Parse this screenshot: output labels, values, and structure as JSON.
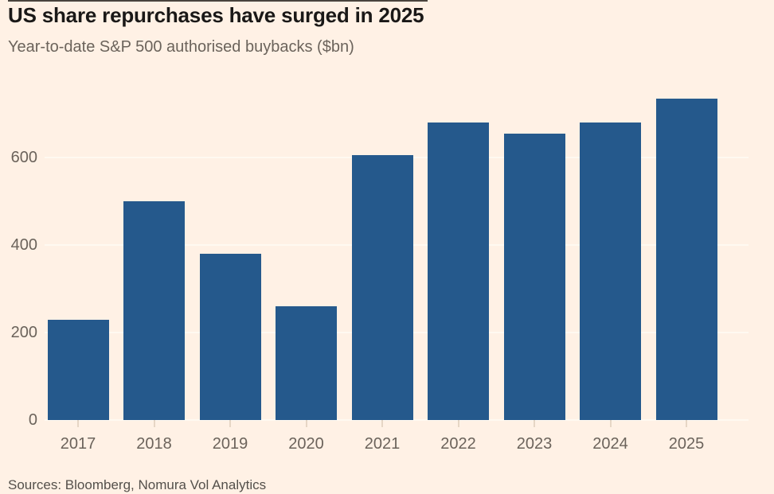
{
  "chart": {
    "title": "US share repurchases have surged in 2025",
    "subtitle": "Year-to-date S&P 500 authorised buybacks ($bn)",
    "source": "Sources: Bloomberg, Nomura Vol Analytics"
  },
  "chart_data": {
    "type": "bar",
    "title": "US share repurchases have surged in 2025",
    "subtitle": "Year-to-date S&P 500 authorised buybacks ($bn)",
    "categories": [
      "2017",
      "2018",
      "2019",
      "2020",
      "2021",
      "2022",
      "2023",
      "2024",
      "2025"
    ],
    "values": [
      230,
      500,
      380,
      260,
      605,
      680,
      655,
      680,
      735
    ],
    "xlabel": "",
    "ylabel": "",
    "yticks": [
      0,
      200,
      400,
      600
    ],
    "ylim": [
      0,
      760
    ],
    "grid": true,
    "legend": false,
    "source": "Sources: Bloomberg, Nomura Vol Analytics"
  },
  "colors": {
    "background": "#FFF1E5",
    "bar": "#25598C",
    "title_text": "#1A1817",
    "muted_text": "#6B635B",
    "source_text": "#54504B",
    "gridline": "#FFF9F1",
    "tick": "#E6D6C5"
  }
}
